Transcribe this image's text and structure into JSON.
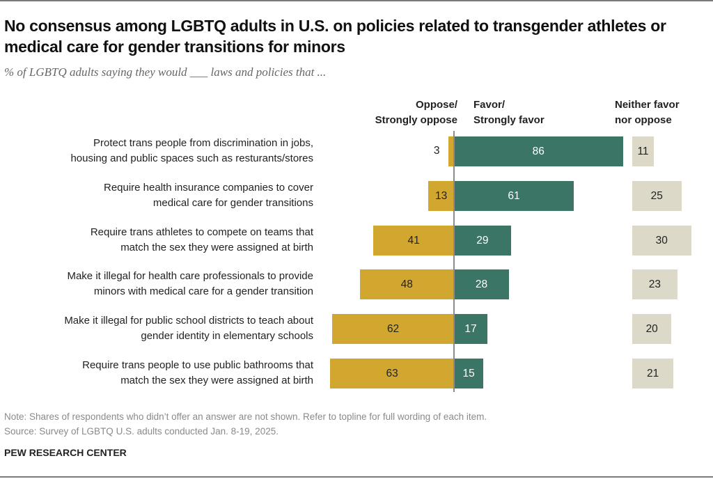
{
  "header": {
    "title": "No consensus among LGBTQ adults in U.S. on policies related to transgender athletes or medical care for gender transitions for minors",
    "subtitle": "% of LGBTQ adults saying they would ___ laws and policies that ..."
  },
  "columns": {
    "oppose": [
      "Oppose/",
      "Strongly oppose"
    ],
    "favor": [
      "Favor/",
      "Strongly favor"
    ],
    "neither": [
      "Neither favor",
      "nor oppose"
    ]
  },
  "colors": {
    "oppose": "#d1a730",
    "favor": "#3b7566",
    "neither": "#dcd9c8"
  },
  "chart_data": {
    "type": "bar",
    "orientation": "horizontal-diverging",
    "title": "No consensus among LGBTQ adults in U.S. on policies related to transgender athletes or medical care for gender transitions for minors",
    "subtitle": "% of LGBTQ adults saying they would ___ laws and policies that ...",
    "categories": [
      [
        "Protect trans people from discrimination in jobs,",
        "housing and public spaces such as resturants/stores"
      ],
      [
        "Require health insurance companies to cover",
        "medical care for gender transitions"
      ],
      [
        "Require trans athletes to compete on teams that",
        "match the sex they were assigned at birth"
      ],
      [
        "Make it illegal for health care professionals to provide",
        "minors with medical care for a gender transition"
      ],
      [
        "Make it illegal for public school districts to teach about",
        "gender identity in elementary schools"
      ],
      [
        "Require trans people to use public bathrooms that",
        "match the sex they were assigned at birth"
      ]
    ],
    "series": [
      {
        "name": "Oppose/Strongly oppose",
        "values": [
          3,
          13,
          41,
          48,
          62,
          63
        ]
      },
      {
        "name": "Favor/Strongly favor",
        "values": [
          86,
          61,
          29,
          28,
          17,
          15
        ]
      },
      {
        "name": "Neither favor nor oppose",
        "values": [
          11,
          25,
          30,
          23,
          20,
          21
        ]
      }
    ],
    "xlabel": "",
    "ylabel": "",
    "unit": "%"
  },
  "footer": {
    "note": "Note: Shares of respondents who didn’t offer an answer are not shown. Refer to topline for full wording of each item.",
    "source": "Source: Survey of LGBTQ U.S. adults conducted Jan. 8-19, 2025.",
    "brand": "PEW RESEARCH CENTER"
  }
}
